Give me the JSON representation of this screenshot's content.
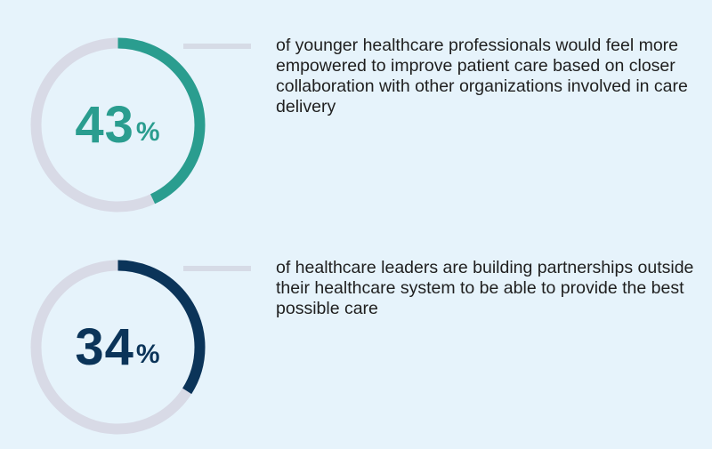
{
  "colors": {
    "track": "#d8dae6",
    "teal": "#2a9d8f",
    "navy": "#0b3459",
    "background": "#e6f3fb",
    "connector": "#d6dbe6"
  },
  "chart_data": [
    {
      "type": "pie",
      "variant": "donut-progress",
      "value": 43,
      "value_label": "43",
      "unit": "%",
      "max": 100,
      "color": "#2a9d8f",
      "text": "of younger healthcare professionals would feel more empowered to improve patient care based on closer collaboration with other organizations involved in care delivery"
    },
    {
      "type": "pie",
      "variant": "donut-progress",
      "value": 34,
      "value_label": "34",
      "unit": "%",
      "max": 100,
      "color": "#0b3459",
      "text": "of healthcare leaders are building partnerships outside their healthcare system to be able to provide the best possible care"
    }
  ]
}
